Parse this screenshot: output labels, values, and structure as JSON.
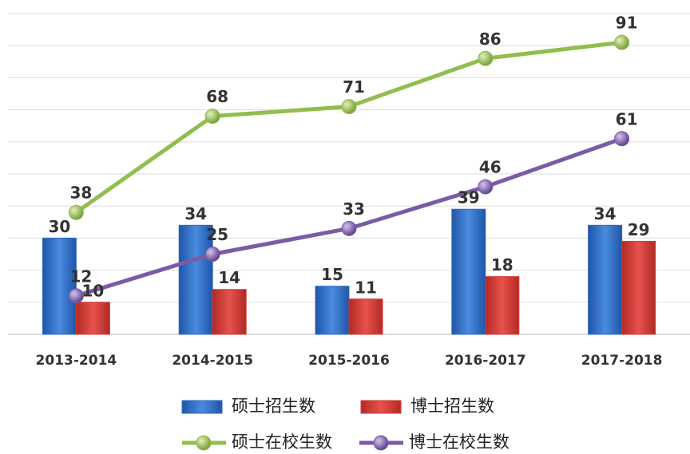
{
  "chart_data": {
    "type": "combo",
    "categories": [
      "2013-2014",
      "2014-2015",
      "2015-2016",
      "2016-2017",
      "2017-2018"
    ],
    "series": [
      {
        "name": "硕士招生数",
        "type": "bar",
        "color": "#2f6cc0",
        "values": [
          30,
          34,
          15,
          39,
          34
        ]
      },
      {
        "name": "博士招生数",
        "type": "bar",
        "color": "#d63a36",
        "values": [
          10,
          14,
          11,
          18,
          29
        ]
      },
      {
        "name": "硕士在校生数",
        "type": "line",
        "color": "#92bd4f",
        "values": [
          38,
          68,
          71,
          86,
          91
        ]
      },
      {
        "name": "博士在校生数",
        "type": "line",
        "color": "#7b5aa6",
        "values": [
          12,
          25,
          33,
          46,
          61
        ]
      }
    ],
    "ylim": [
      0,
      100
    ],
    "yticks": [
      0,
      10,
      20,
      30,
      40,
      50,
      60,
      70,
      80,
      90,
      100
    ],
    "grid": true
  }
}
